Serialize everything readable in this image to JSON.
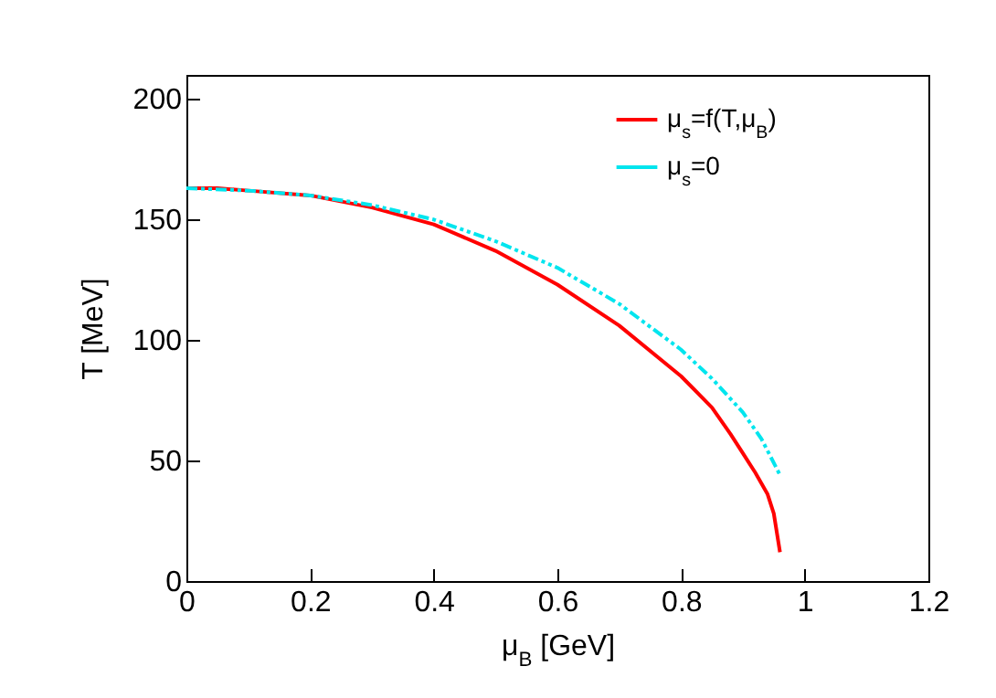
{
  "chart_data": {
    "type": "line",
    "xlabel": "μ$_{B}$ [GeV]",
    "ylabel": "T [MeV]",
    "xlim": [
      0,
      1.2
    ],
    "xticks": [
      0,
      0.2,
      0.4,
      0.6,
      0.8,
      1,
      1.2
    ],
    "ylim": [
      0,
      210
    ],
    "yticks": [
      0,
      50,
      100,
      150,
      200
    ],
    "legend": "top right",
    "grid": false,
    "series": [
      {
        "name": "μ$_{s}$=f(T,μ$_{B}$)",
        "color": "#ff0000",
        "line_style": "solid",
        "x": [
          0,
          0.05,
          0.1,
          0.2,
          0.3,
          0.4,
          0.5,
          0.6,
          0.7,
          0.8,
          0.85,
          0.88,
          0.9,
          0.92,
          0.94,
          0.95,
          0.96
        ],
        "values": [
          163,
          163,
          162,
          160,
          155,
          148,
          137,
          123,
          106,
          85,
          72,
          61,
          53,
          45,
          36,
          28,
          12
        ]
      },
      {
        "name": "μ$_{s}$=0",
        "color": "#00e5ee",
        "line_style": "dashed",
        "x": [
          0,
          0.1,
          0.2,
          0.3,
          0.4,
          0.5,
          0.6,
          0.7,
          0.8,
          0.85,
          0.9,
          0.93,
          0.96
        ],
        "values": [
          163,
          162,
          160,
          156,
          150,
          141,
          130,
          115,
          96,
          84,
          70,
          59,
          44
        ]
      }
    ]
  }
}
